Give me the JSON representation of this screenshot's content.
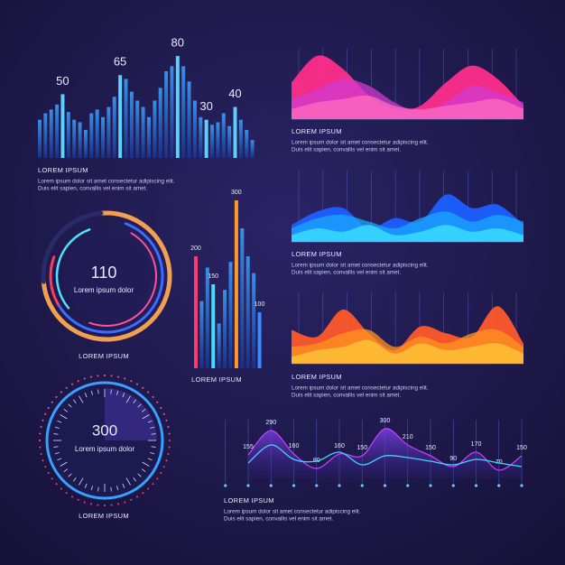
{
  "chart_data": [
    {
      "type": "bar",
      "title": "LOREM IPSUM",
      "caption": [
        "Lorem ipsum  dolor  sit  amet consectetur adipiscing elit.",
        "Duis elit sapien, convallis vel enim sit amet."
      ],
      "values": [
        30,
        35,
        38,
        42,
        50,
        36,
        30,
        28,
        22,
        35,
        38,
        32,
        40,
        48,
        65,
        62,
        52,
        45,
        40,
        32,
        45,
        55,
        68,
        72,
        80,
        72,
        60,
        45,
        32,
        30,
        26,
        28,
        35,
        25,
        40,
        30,
        22,
        14
      ],
      "value_labels": [
        null,
        null,
        null,
        null,
        "50",
        null,
        null,
        null,
        null,
        null,
        null,
        null,
        null,
        null,
        "65",
        null,
        null,
        null,
        null,
        null,
        null,
        null,
        null,
        null,
        "80",
        null,
        null,
        null,
        null,
        "30",
        null,
        null,
        null,
        null,
        "40",
        null,
        null,
        null
      ],
      "ylim": [
        0,
        85
      ],
      "color": "#2f6fd8",
      "highlight_color": "#5ad1ff"
    },
    {
      "type": "area",
      "title": "LOREM IPSUM",
      "caption": [
        "Lorem ipsum  dolor  sit  amet consectetur adipiscing elit.",
        "Duis elit sapien, convallis vel enim sit amet."
      ],
      "ylim": [
        0,
        100
      ],
      "series": [
        {
          "color": "#ff2d8a",
          "values": [
            55,
            95,
            75,
            35,
            15,
            20,
            55,
            80,
            60,
            20
          ]
        },
        {
          "color": "#d23ad0",
          "values": [
            30,
            45,
            60,
            50,
            25,
            10,
            25,
            50,
            40,
            25
          ]
        },
        {
          "color": "#ff6ec0",
          "values": [
            15,
            25,
            30,
            35,
            20,
            15,
            20,
            25,
            30,
            15
          ]
        }
      ]
    },
    {
      "type": "area",
      "title": "LOREM IPSUM",
      "caption": [
        "Lorem ipsum  dolor  sit  amet consectetur adipiscing elit.",
        "Duis elit sapien, convallis vel enim sit amet."
      ],
      "ylim": [
        0,
        100
      ],
      "series": [
        {
          "color": "#1e5fff",
          "values": [
            25,
            45,
            50,
            20,
            35,
            30,
            70,
            50,
            55,
            25
          ]
        },
        {
          "color": "#19a8ff",
          "values": [
            20,
            35,
            40,
            30,
            20,
            35,
            45,
            30,
            40,
            30
          ]
        },
        {
          "color": "#3ee6ff",
          "values": [
            10,
            20,
            15,
            25,
            10,
            15,
            25,
            15,
            20,
            10
          ]
        }
      ]
    },
    {
      "type": "area",
      "title": "LOREM IPSUM",
      "caption": [
        "Lorem ipsum  dolor  sit  amet consectetur adipiscing elit.",
        "Duis elit sapien, convallis vel enim sit amet."
      ],
      "ylim": [
        0,
        100
      ],
      "series": [
        {
          "color": "#ff5a2a",
          "values": [
            50,
            40,
            80,
            45,
            20,
            55,
            45,
            40,
            85,
            30
          ]
        },
        {
          "color": "#ff9420",
          "values": [
            25,
            30,
            45,
            50,
            25,
            40,
            30,
            45,
            50,
            25
          ]
        },
        {
          "color": "#ffc93a",
          "values": [
            10,
            20,
            25,
            35,
            15,
            30,
            20,
            25,
            30,
            15
          ]
        }
      ]
    },
    {
      "type": "donut",
      "title": "LOREM IPSUM",
      "value": 110,
      "label": "Lorem ipsum dolor"
    },
    {
      "type": "bar",
      "title": "LOREM IPSUM",
      "values": [
        200,
        120,
        180,
        150,
        80,
        140,
        190,
        300,
        250,
        200,
        170,
        100
      ],
      "value_labels": [
        "200",
        null,
        null,
        "150",
        null,
        null,
        null,
        "300",
        null,
        null,
        null,
        "100"
      ],
      "ylim": [
        0,
        300
      ],
      "color": "#2f6fd8",
      "highlight_colors": [
        "#ff3a6e",
        "#3ee0ff",
        "#ff9a2a",
        "#3a8bff"
      ]
    },
    {
      "type": "speedometer",
      "title": "LOREM IPSUM",
      "value": 300,
      "label": "Lorem ipsum dolor"
    },
    {
      "type": "line",
      "title": "LOREM IPSUM",
      "caption": [
        "Lorem ipsum  dolor  sit  amet consectetur adipiscing elit.",
        "Duis elit sapien, convallis vel enim sit amet."
      ],
      "ylim": [
        0,
        320
      ],
      "series": [
        {
          "color": "#c23cff",
          "values": [
            155,
            290,
            160,
            80,
            160,
            150,
            300,
            210,
            150,
            90,
            170,
            70,
            150
          ]
        },
        {
          "color": "#42d4ff",
          "values": [
            110,
            210,
            130,
            120,
            170,
            100,
            150,
            140,
            120,
            100,
            130,
            110,
            90
          ]
        }
      ]
    }
  ]
}
